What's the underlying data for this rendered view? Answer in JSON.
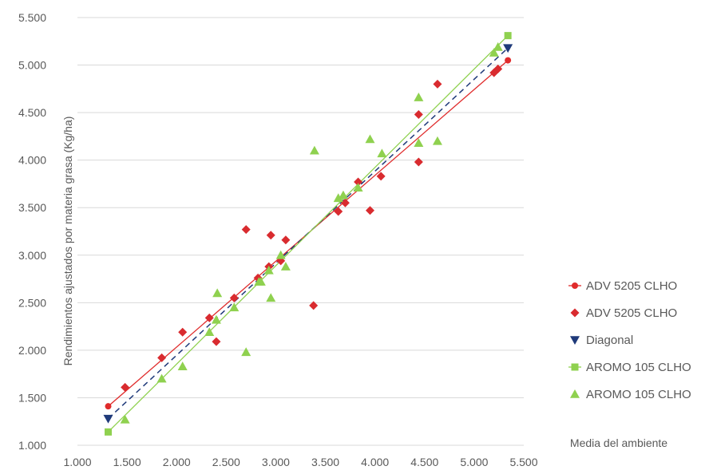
{
  "chart_data": {
    "type": "scatter",
    "title": "",
    "xlabel": "Media del ambiente",
    "ylabel": "Rendimientos ajustados por materia grasa (Kg/ha)",
    "xlim": [
      1000,
      5500
    ],
    "ylim": [
      1000,
      5500
    ],
    "x_ticks": [
      "1.000",
      "1.500",
      "2.000",
      "2.500",
      "3.000",
      "3.500",
      "4.000",
      "4.500",
      "5.000",
      "5.500"
    ],
    "y_ticks": [
      "1.000",
      "1.500",
      "2.000",
      "2.500",
      "3.000",
      "3.500",
      "4.000",
      "4.500",
      "5.000",
      "5.500"
    ],
    "grid": "horizontal",
    "legend_position": "right",
    "series": [
      {
        "name": "ADV 5205 CLHO",
        "kind": "trendline",
        "color": "#e02b2b",
        "marker": "circle",
        "x": [
          1310,
          5340
        ],
        "y": [
          1410,
          5050
        ]
      },
      {
        "name": "ADV 5205 CLHO",
        "kind": "points",
        "color": "#d92b2f",
        "marker": "diamond",
        "x": [
          1480,
          1850,
          2060,
          2330,
          2400,
          2580,
          2700,
          2820,
          2930,
          2950,
          3050,
          3100,
          3380,
          3630,
          3700,
          3830,
          3950,
          4060,
          4440,
          4440,
          4630,
          5200,
          5240
        ],
        "y": [
          1610,
          1920,
          2190,
          2340,
          2090,
          2550,
          3270,
          2760,
          2880,
          3210,
          2940,
          3160,
          2470,
          3460,
          3550,
          3770,
          3470,
          3830,
          3980,
          4480,
          4800,
          4920,
          4960
        ]
      },
      {
        "name": "Diagonal",
        "kind": "dashed-line",
        "color": "#1f3a7a",
        "marker": "triangle-down",
        "x": [
          1310,
          5340
        ],
        "y": [
          1280,
          5180
        ]
      },
      {
        "name": "AROMO 105 CLHO",
        "kind": "trendline",
        "color": "#8fd14f",
        "marker": "square",
        "x": [
          1310,
          5340
        ],
        "y": [
          1140,
          5310
        ]
      },
      {
        "name": "AROMO 105 CLHO",
        "kind": "points",
        "color": "#8fd14f",
        "marker": "triangle",
        "x": [
          1480,
          1850,
          2060,
          2330,
          2400,
          2410,
          2580,
          2700,
          2830,
          2850,
          2930,
          2950,
          3050,
          3100,
          3390,
          3630,
          3680,
          3830,
          3950,
          4070,
          4440,
          4440,
          4630,
          5200,
          5240
        ],
        "y": [
          1270,
          1700,
          1830,
          2190,
          2320,
          2600,
          2450,
          1980,
          2720,
          2720,
          2840,
          2550,
          3000,
          2880,
          4100,
          3600,
          3630,
          3710,
          4220,
          4070,
          4660,
          4180,
          4200,
          5130,
          5190
        ]
      }
    ]
  }
}
